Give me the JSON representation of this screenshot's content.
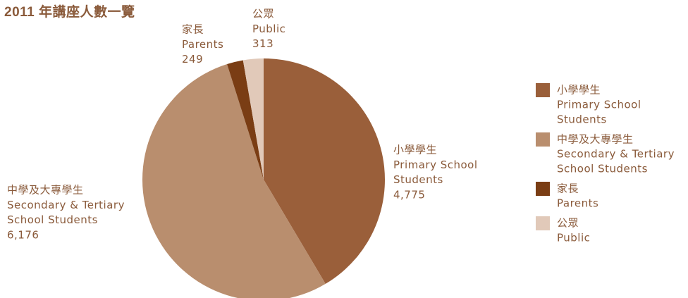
{
  "chart_data": {
    "type": "pie",
    "title": "2011 年講座人數一覽",
    "categories": [
      [
        "小學學生",
        "Primary School",
        "Students"
      ],
      [
        "中學及大專學生",
        "Secondary & Tertiary",
        "School Students"
      ],
      [
        "家長",
        "Parents"
      ],
      [
        "公眾",
        "Public"
      ]
    ],
    "values": [
      4775,
      6176,
      249,
      313
    ],
    "value_labels": [
      "4,775",
      "6,176",
      "249",
      "313"
    ],
    "colors": [
      "#9a5f3a",
      "#b98e6e",
      "#7a3d14",
      "#e1c9b9"
    ],
    "legend": "right"
  }
}
